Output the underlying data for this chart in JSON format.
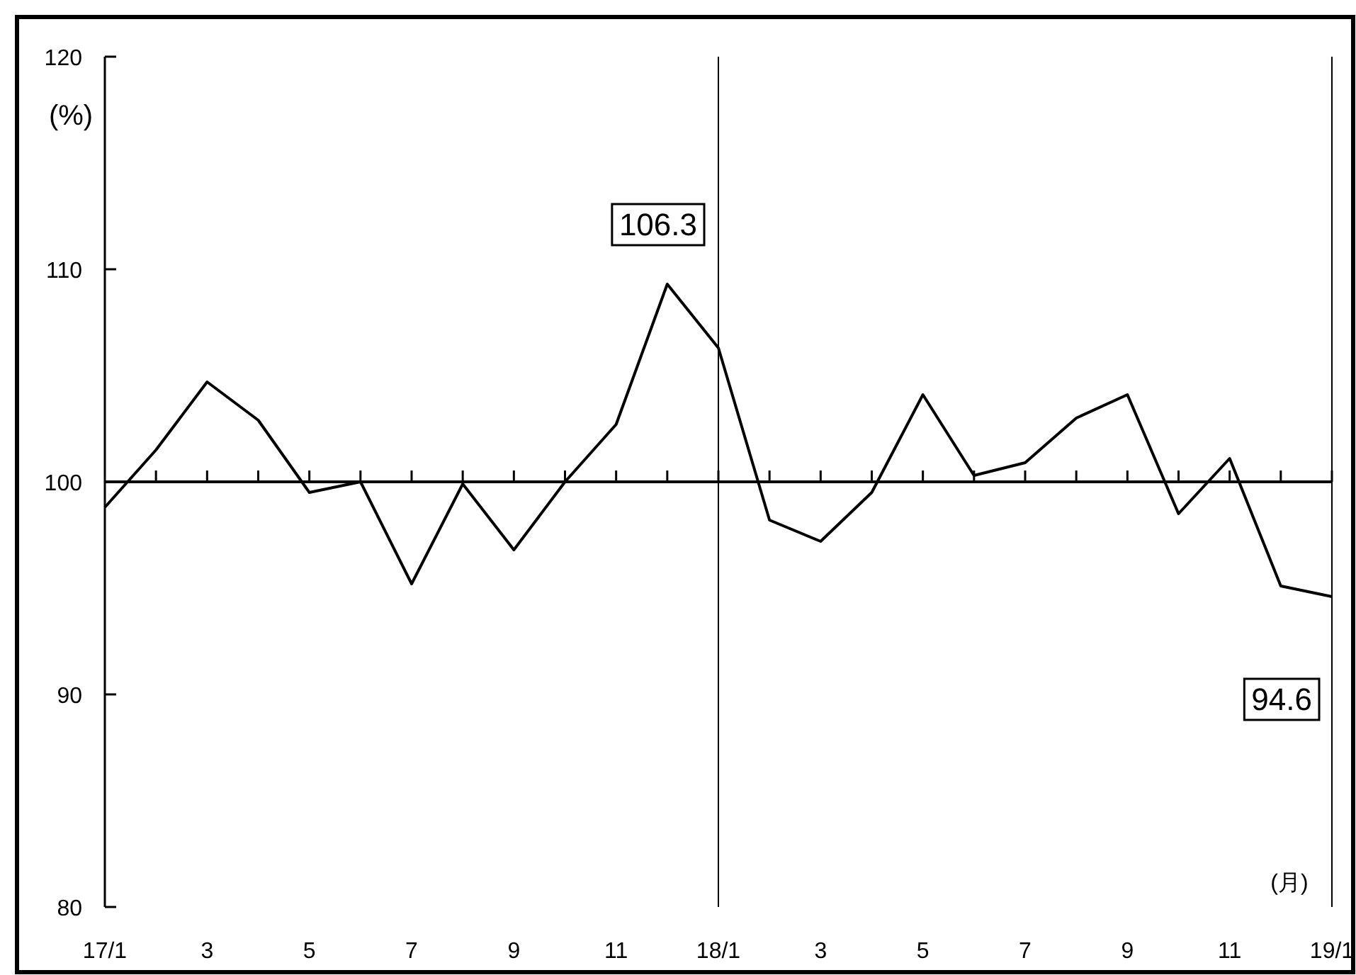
{
  "chart_data": {
    "type": "line",
    "categories": [
      "17/1",
      null,
      "3",
      null,
      "5",
      null,
      "7",
      null,
      "9",
      null,
      "11",
      null,
      "18/1",
      null,
      "3",
      null,
      "5",
      null,
      "7",
      null,
      "9",
      null,
      "11",
      null,
      "19/1"
    ],
    "values": [
      98.8,
      101.5,
      104.7,
      102.9,
      99.5,
      100.0,
      95.2,
      99.9,
      96.8,
      100.0,
      102.7,
      109.3,
      106.3,
      98.2,
      97.2,
      99.5,
      104.1,
      100.3,
      100.9,
      103.0,
      104.1,
      98.5,
      101.1,
      95.1,
      94.6
    ],
    "color": "#000000",
    "ylim": [
      80,
      120
    ],
    "yticks": [
      80,
      90,
      100,
      110,
      120
    ],
    "ylabel": "(%)",
    "xlabel": "(月)",
    "ref_lines": [
      {
        "axis": "y",
        "value": 100
      },
      {
        "axis": "x",
        "value": "18/1"
      },
      {
        "axis": "x",
        "value": "19/1"
      }
    ],
    "annotations": [
      "106.3",
      "94.6"
    ]
  }
}
